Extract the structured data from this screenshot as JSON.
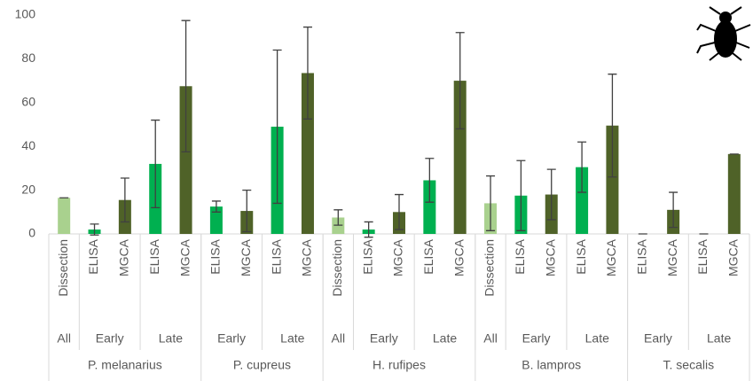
{
  "chart_data": {
    "type": "bar",
    "categories": [
      "Dissection",
      "ELISA",
      "MGCA",
      "ELISA",
      "MGCA",
      "ELISA",
      "MGCA",
      "ELISA",
      "MGCA",
      "Dissection",
      "ELISA",
      "MGCA",
      "ELISA",
      "MGCA",
      "Dissection",
      "ELISA",
      "MGCA",
      "ELISA",
      "MGCA",
      "ELISA",
      "MGCA",
      "ELISA",
      "MGCA"
    ],
    "values": [
      16.5,
      2,
      15.5,
      32,
      67.5,
      12.5,
      10.5,
      49,
      73.5,
      7.5,
      2,
      10,
      24.5,
      70,
      14,
      17.5,
      18,
      30.5,
      49.5,
      0,
      11,
      0,
      36.5
    ],
    "errors": [
      0,
      2.5,
      10,
      20,
      30,
      2.5,
      9.5,
      35,
      21,
      3.5,
      3.5,
      8,
      10,
      22,
      12.5,
      16,
      11.5,
      11.5,
      23.5,
      0,
      8,
      0,
      0
    ],
    "colors": {
      "Dissection": "#a9d18e",
      "ELISA": "#00b050",
      "MGCA": "#4f6228"
    },
    "periods": [
      {
        "label": "All",
        "count": 1
      },
      {
        "label": "Early",
        "count": 2
      },
      {
        "label": "Late",
        "count": 2
      },
      {
        "label": "Early",
        "count": 2
      },
      {
        "label": "Late",
        "count": 2
      },
      {
        "label": "All",
        "count": 1
      },
      {
        "label": "Early",
        "count": 2
      },
      {
        "label": "Late",
        "count": 2
      },
      {
        "label": "All",
        "count": 1
      },
      {
        "label": "Early",
        "count": 2
      },
      {
        "label": "Late",
        "count": 2
      },
      {
        "label": "Early",
        "count": 2
      },
      {
        "label": "Late",
        "count": 2
      }
    ],
    "species": [
      {
        "label": "P. melanarius",
        "count": 5
      },
      {
        "label": "P. cupreus",
        "count": 4
      },
      {
        "label": "H. rufipes",
        "count": 5
      },
      {
        "label": "B. lampros",
        "count": 5
      },
      {
        "label": "T. secalis",
        "count": 4
      }
    ],
    "ylim": [
      0,
      100
    ],
    "yticks": [
      0,
      20,
      40,
      60,
      80,
      100
    ]
  }
}
